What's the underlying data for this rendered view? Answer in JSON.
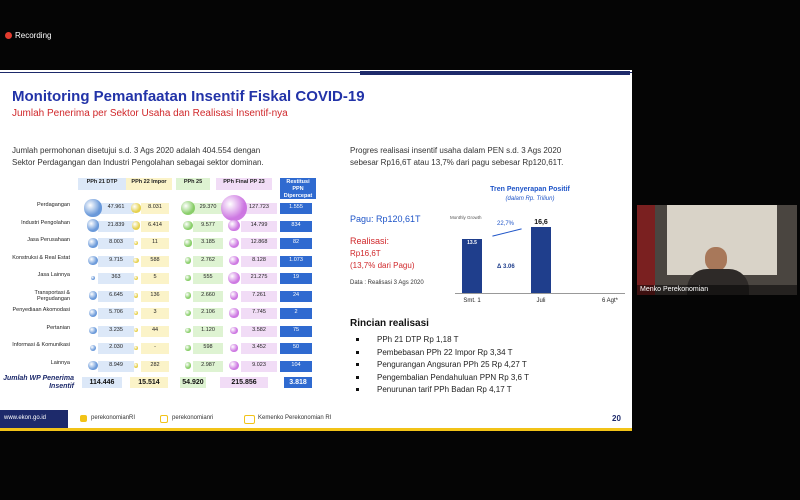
{
  "recording": "Recording",
  "slide": {
    "title": "Monitoring Pemanfaatan Insentif Fiskal COVID-19",
    "subtitle": "Jumlah Penerima per Sektor Usaha dan Realisasi Insentif-nya",
    "left_text": [
      "Jumlah permohonan disetujui s.d. 3 Ags 2020 adalah 404.554 dengan",
      "Sektor Perdagangan dan Industri Pengolahan sebagai sektor dominan."
    ],
    "table": {
      "headers": [
        "PPh 21 DTP",
        "PPh 22 Impor",
        "PPh 25",
        "PPh Final PP 23",
        "Restitusi PPN Dipercepat"
      ],
      "rows": [
        {
          "sector": "Perdagangan",
          "cells": [
            "47.961",
            "8.031",
            "29.370",
            "127.723",
            "1.555"
          ]
        },
        {
          "sector": "Industri Pengolahan",
          "cells": [
            "21.839",
            "6.414",
            "9.577",
            "14.799",
            "834"
          ]
        },
        {
          "sector": "Jasa Perusahaan",
          "cells": [
            "8.003",
            "11",
            "3.185",
            "12.868",
            "82"
          ]
        },
        {
          "sector": "Konstruksi & Real Estat",
          "cells": [
            "9.715",
            "588",
            "2.762",
            "8.128",
            "1.073"
          ]
        },
        {
          "sector": "Jasa Lainnya",
          "cells": [
            "363",
            "5",
            "555",
            "21.275",
            "19"
          ]
        },
        {
          "sector": "Transportasi & Pergudangan",
          "cells": [
            "6.645",
            "136",
            "2.660",
            "7.261",
            "24"
          ]
        },
        {
          "sector": "Penyediaan Akomodasi",
          "cells": [
            "5.706",
            "3",
            "2.106",
            "7.745",
            "2"
          ]
        },
        {
          "sector": "Pertanian",
          "cells": [
            "3.235",
            "44",
            "1.120",
            "3.582",
            "75"
          ]
        },
        {
          "sector": "Informasi & Komunikasi",
          "cells": [
            "2.030",
            "-",
            "598",
            "3.452",
            "50"
          ]
        },
        {
          "sector": "Lainnya",
          "cells": [
            "8.949",
            "282",
            "2.987",
            "9.023",
            "104"
          ]
        }
      ],
      "total": {
        "label": "Jumlah WP Penerima Insentif",
        "cells": [
          "114.446",
          "15.514",
          "54.920",
          "215.856",
          "3.818"
        ]
      }
    },
    "right_text": [
      "Progres realisasi insentif usaha dalam PEN s.d. 3 Ags 2020",
      "sebesar Rp16,6T atau 13,7% dari pagu sebesar Rp120,61T."
    ],
    "chart": {
      "title": "Tren Penyerapan Positif",
      "subtitle": "(dalam Rp. Triliun)",
      "categories": [
        "Smt. 1",
        "Juli",
        "6 Agt*"
      ],
      "values": [
        13.5,
        16.6,
        null
      ],
      "value_labels": [
        "13.5",
        "16,6",
        null
      ],
      "growth_label": "Monthly Growth",
      "growth": "22,7%",
      "delta": "Δ 3.06"
    },
    "pagu": "Pagu: Rp120,61T",
    "realisasi": [
      "Realisasi:",
      "Rp16,6T",
      "(13,7% dari Pagu)"
    ],
    "source": "Data : Realisasi 3 Ags 2020",
    "details_title": "Rincian realisasi",
    "details": [
      "PPh 21 DTP Rp 1,18 T",
      "Pembebasan PPh 22 Impor Rp 3,34 T",
      "Pengurangan Angsuran PPh 25 Rp 4,27 T",
      "Pengembalian Pendahuluan PPN Rp 3,6 T",
      "Penurunan tarif PPh Badan Rp 4,17 T"
    ],
    "footer": {
      "website": "www.ekon.go.id",
      "twitter": "perekonomianRI",
      "instagram": "perekonomianri",
      "youtube": "Kemenko Perekonomian RI",
      "page": "20"
    }
  },
  "participant": "Menko Perekonomian"
}
